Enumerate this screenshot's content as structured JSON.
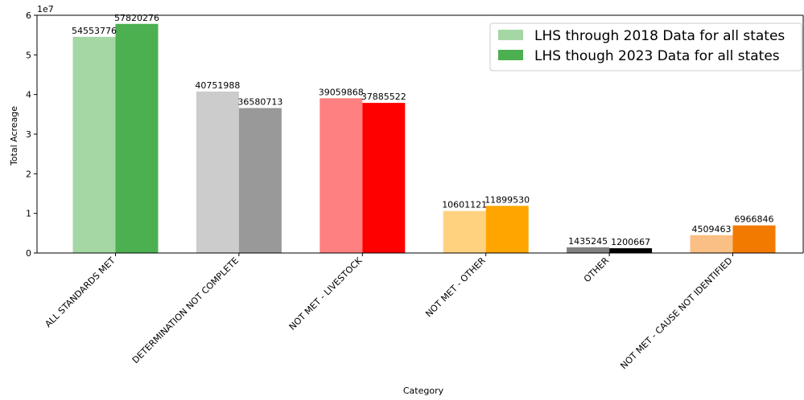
{
  "chart_data": {
    "type": "bar",
    "xlabel": "Category",
    "ylabel": "Total Acreage",
    "scale_label": "1e7",
    "ylim": [
      0,
      60000000
    ],
    "yticks": [
      0,
      10000000,
      20000000,
      30000000,
      40000000,
      50000000,
      60000000
    ],
    "ytick_labels": [
      "0",
      "1",
      "2",
      "3",
      "4",
      "5",
      "6"
    ],
    "legend_position": "top-right",
    "grid": false,
    "categories": [
      "ALL STANDARDS MET",
      "DETERMINATION NOT COMPLETE",
      "NOT MET - LIVESTOCK",
      "NOT MET - OTHER",
      "OTHER",
      "NOT MET - CAUSE NOT IDENTIFIED"
    ],
    "series": [
      {
        "name": "LHS through 2018 Data for all states",
        "values": [
          54553776,
          40751988,
          39059868,
          10601121,
          1435245,
          4509463
        ],
        "colors": [
          "#a4d7a4",
          "#cccccc",
          "#ff8080",
          "#ffd280",
          "#808080",
          "#f9bf84"
        ],
        "legend_color": "#a4d7a4"
      },
      {
        "name": "LHS though 2023 Data for all states",
        "values": [
          57820276,
          36580713,
          37885522,
          11899530,
          1200667,
          6966846
        ],
        "colors": [
          "#4caf50",
          "#999999",
          "#ff0000",
          "#ffa500",
          "#000000",
          "#f27a00"
        ],
        "legend_color": "#4caf50"
      }
    ]
  }
}
